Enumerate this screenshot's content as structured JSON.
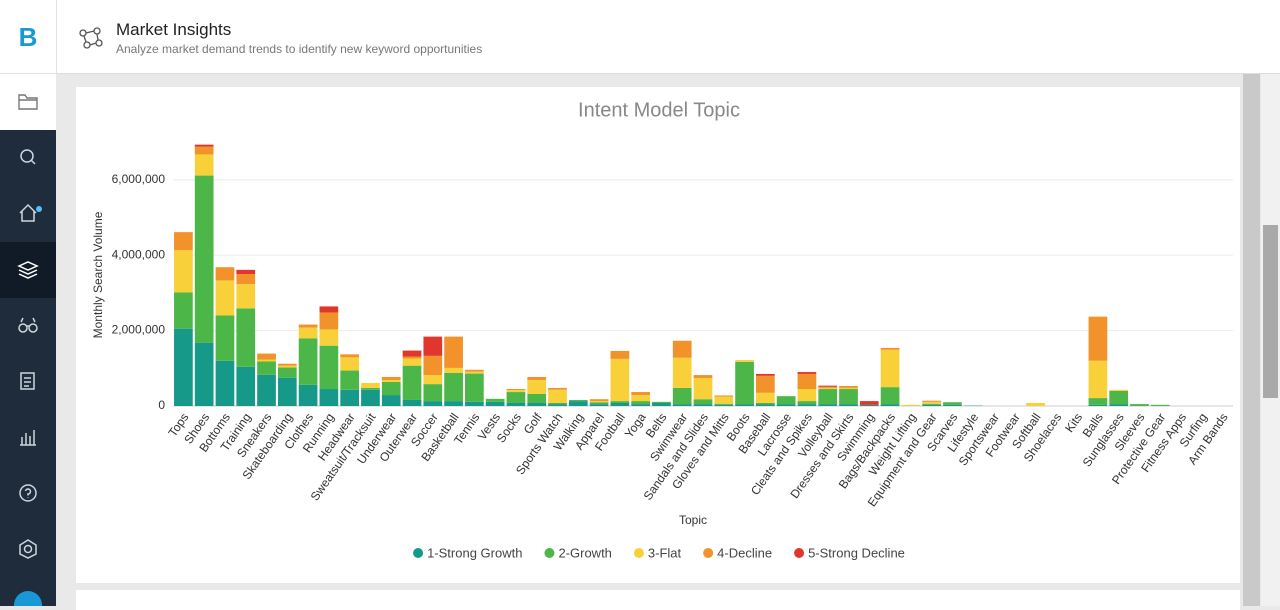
{
  "header": {
    "logo": "B",
    "title": "Market Insights",
    "subtitle": "Analyze market demand trends to identify new keyword opportunities"
  },
  "chart_data": {
    "type": "stacked-bar",
    "title": "Intent Model Topic",
    "x_label": "Topic",
    "y_label": "Monthly Search Volume",
    "categories": [
      "Tops",
      "Shoes",
      "Bottoms",
      "Training",
      "Sneakers",
      "Skateboarding",
      "Clothes",
      "Running",
      "Headwear",
      "Sweatsuit/Tracksuit",
      "Underwear",
      "Outerwear",
      "Soccer",
      "Basketball",
      "Tennis",
      "Vests",
      "Socks",
      "Golf",
      "Sports Watch",
      "Walking",
      "Apparel",
      "Football",
      "Yoga",
      "Belts",
      "Swimwear",
      "Sandals and Slides",
      "Gloves and Mitts",
      "Boots",
      "Baseball",
      "Lacrosse",
      "Cleats and Spikes",
      "Volleyball",
      "Dresses and Skirts",
      "Swimming",
      "Bags/Backpacks",
      "Weight Lifting",
      "Equipment and Gear",
      "Scarves",
      "Lifestyle",
      "Sportswear",
      "Footwear",
      "Softball",
      "Shoelaces",
      "Kits",
      "Balls",
      "Sunglasses",
      "Sleeves",
      "Protective Gear",
      "Fitness Apps",
      "Surfing",
      "Arm Bands"
    ],
    "series": [
      {
        "name": "1-Strong Growth",
        "color": "#17998a",
        "values": [
          2050000,
          1680000,
          1200000,
          1040000,
          830000,
          750000,
          560000,
          450000,
          430000,
          430000,
          290000,
          160000,
          130000,
          130000,
          110000,
          110000,
          80000,
          80000,
          50000,
          130000,
          50000,
          80000,
          50000,
          80000,
          50000,
          50000,
          30000,
          50000,
          50000,
          50000,
          50000,
          50000,
          50000,
          30000,
          50000,
          0,
          30000,
          30000,
          10000,
          0,
          0,
          0,
          0,
          0,
          30000,
          50000,
          0,
          0,
          0,
          0,
          0
        ]
      },
      {
        "name": "2-Growth",
        "color": "#4cb748",
        "values": [
          960000,
          4430000,
          1200000,
          1550000,
          350000,
          270000,
          1230000,
          1150000,
          510000,
          50000,
          350000,
          910000,
          450000,
          750000,
          750000,
          80000,
          290000,
          240000,
          30000,
          30000,
          50000,
          50000,
          80000,
          30000,
          430000,
          130000,
          30000,
          1120000,
          30000,
          210000,
          80000,
          400000,
          400000,
          0,
          450000,
          0,
          30000,
          70000,
          0,
          0,
          0,
          0,
          0,
          0,
          180000,
          350000,
          50000,
          30000,
          0,
          0,
          0
        ]
      },
      {
        "name": "3-Flat",
        "color": "#f8d13a",
        "values": [
          1120000,
          560000,
          930000,
          640000,
          50000,
          50000,
          290000,
          430000,
          350000,
          130000,
          50000,
          190000,
          240000,
          130000,
          50000,
          0,
          50000,
          370000,
          350000,
          0,
          30000,
          1120000,
          160000,
          0,
          800000,
          560000,
          190000,
          50000,
          270000,
          0,
          320000,
          30000,
          30000,
          0,
          990000,
          30000,
          50000,
          0,
          0,
          0,
          0,
          80000,
          0,
          0,
          990000,
          30000,
          0,
          0,
          0,
          0,
          0
        ]
      },
      {
        "name": "4-Decline",
        "color": "#f2922a",
        "values": [
          480000,
          210000,
          350000,
          270000,
          160000,
          50000,
          80000,
          450000,
          80000,
          0,
          80000,
          50000,
          510000,
          830000,
          50000,
          0,
          30000,
          80000,
          50000,
          0,
          50000,
          210000,
          80000,
          0,
          450000,
          80000,
          30000,
          0,
          450000,
          0,
          400000,
          30000,
          50000,
          0,
          50000,
          0,
          30000,
          0,
          0,
          0,
          0,
          0,
          0,
          0,
          1170000,
          0,
          0,
          0,
          0,
          0,
          0
        ]
      },
      {
        "name": "5-Strong Decline",
        "color": "#e0362c",
        "values": [
          0,
          50000,
          0,
          110000,
          0,
          0,
          0,
          160000,
          0,
          0,
          0,
          160000,
          510000,
          0,
          0,
          0,
          0,
          0,
          0,
          0,
          0,
          0,
          0,
          0,
          0,
          0,
          0,
          0,
          50000,
          0,
          50000,
          30000,
          0,
          100000,
          0,
          0,
          0,
          0,
          0,
          0,
          0,
          0,
          0,
          0,
          0,
          0,
          0,
          0,
          0,
          0,
          0
        ]
      }
    ],
    "ylim": [
      0,
      7000000
    ],
    "yticks": [
      0,
      {
        "value": 2000000,
        "label": "2,000,000"
      },
      {
        "value": 4000000,
        "label": "4,000,000"
      },
      {
        "value": 6000000,
        "label": "6,000,000"
      }
    ],
    "grid": true,
    "legend": "bottom"
  }
}
